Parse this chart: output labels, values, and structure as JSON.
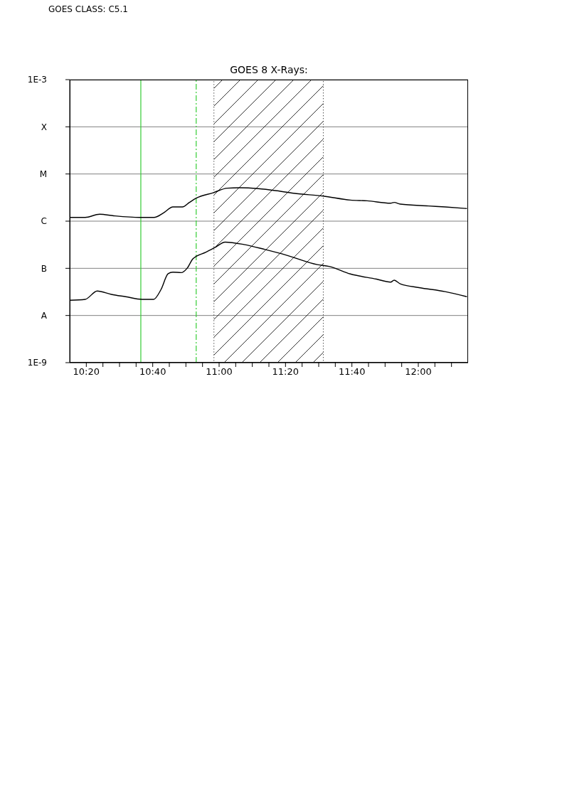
{
  "chart_data": {
    "type": "line",
    "title": "GOES 8 X-Rays:",
    "annotations": [
      "GOES CLASS: C5.1"
    ],
    "log": "y",
    "grid": "y",
    "xlim": [
      10.25,
      12.25
    ],
    "xticks": [
      {
        "value": 10.3333,
        "label": "10:20"
      },
      {
        "value": 10.4167,
        "label": null
      },
      {
        "value": 10.5,
        "label": null
      },
      {
        "value": 10.5833,
        "label": null
      },
      {
        "value": 10.6667,
        "label": "10:40"
      },
      {
        "value": 10.75,
        "label": null
      },
      {
        "value": 10.8333,
        "label": null
      },
      {
        "value": 10.9167,
        "label": null
      },
      {
        "value": 11,
        "label": "11:00"
      },
      {
        "value": 11.0833,
        "label": null
      },
      {
        "value": 11.1667,
        "label": null
      },
      {
        "value": 11.25,
        "label": null
      },
      {
        "value": 11.3333,
        "label": "11:20"
      },
      {
        "value": 11.4167,
        "label": null
      },
      {
        "value": 11.5,
        "label": null
      },
      {
        "value": 11.5833,
        "label": null
      },
      {
        "value": 11.6667,
        "label": "11:40"
      },
      {
        "value": 11.75,
        "label": null
      },
      {
        "value": 11.8333,
        "label": null
      },
      {
        "value": 11.9167,
        "label": null
      },
      {
        "value": 12,
        "label": "12:00"
      },
      {
        "value": 12.0833,
        "label": null
      },
      {
        "value": 12.1667,
        "label": null
      }
    ],
    "ylim": [
      1e-09,
      0.001
    ],
    "yticks": [
      {
        "value": 1e-09,
        "label": "1E-9"
      },
      {
        "value": 1e-08,
        "label": "A"
      },
      {
        "value": 1e-07,
        "label": "B"
      },
      {
        "value": 1e-06,
        "label": "C"
      },
      {
        "value": 1e-05,
        "label": "M"
      },
      {
        "value": 0.0001,
        "label": "X"
      },
      {
        "value": 0.001,
        "label": "1E-3"
      }
    ],
    "series": [
      {
        "color": "#000000",
        "x": [
          10.251,
          10.328,
          10.4,
          10.471,
          10.602,
          10.673,
          10.721,
          10.768,
          10.816,
          10.851,
          10.887,
          10.97,
          11.041,
          11.101,
          11.196,
          11.291,
          11.374,
          11.523,
          11.659,
          11.743,
          11.861,
          11.879,
          11.909,
          12.051,
          12.135,
          12.244
        ],
        "values": [
          1.2e-06,
          1.2e-06,
          1.4e-06,
          1.3e-06,
          1.2e-06,
          1.2e-06,
          1.5e-06,
          2e-06,
          2e-06,
          2.5e-06,
          3.1e-06,
          4e-06,
          5e-06,
          5.1e-06,
          4.9e-06,
          4.4e-06,
          3.9e-06,
          3.4e-06,
          2.8e-06,
          2.7e-06,
          2.4e-06,
          2.5e-06,
          2.3e-06,
          2.1e-06,
          2e-06,
          1.85e-06
        ]
      },
      {
        "color": "#000000",
        "x": [
          10.251,
          10.328,
          10.388,
          10.459,
          10.531,
          10.614,
          10.671,
          10.709,
          10.744,
          10.768,
          10.81,
          10.839,
          10.869,
          10.934,
          10.982,
          11.03,
          11.125,
          11.231,
          11.338,
          11.493,
          11.552,
          11.659,
          11.79,
          11.861,
          11.879,
          11.909,
          12.004,
          12.135,
          12.244
        ],
        "values": [
          2.1e-08,
          2.2e-08,
          3.3e-08,
          2.8e-08,
          2.5e-08,
          2.2e-08,
          2.2e-08,
          3.6e-08,
          7.7e-08,
          8.3e-08,
          8.1e-08,
          1e-07,
          1.6e-07,
          2.2e-07,
          2.8e-07,
          3.6e-07,
          3.2e-07,
          2.5e-07,
          1.9e-07,
          1.2e-07,
          1.1e-07,
          7.6e-08,
          5.9e-08,
          5.1e-08,
          5.6e-08,
          4.7e-08,
          3.9e-08,
          3.2e-08,
          2.5e-08
        ]
      }
    ],
    "ref_lines": [
      {
        "axis": "x",
        "value": 10.607,
        "color": "#33cc33",
        "line_style": "solid"
      },
      {
        "axis": "x",
        "value": 10.885,
        "color": "#33cc33",
        "line_style": "dashed"
      }
    ],
    "bands": [
      {
        "axis": "x",
        "from": 10.974,
        "to": 11.523,
        "color": "#000000"
      }
    ]
  }
}
